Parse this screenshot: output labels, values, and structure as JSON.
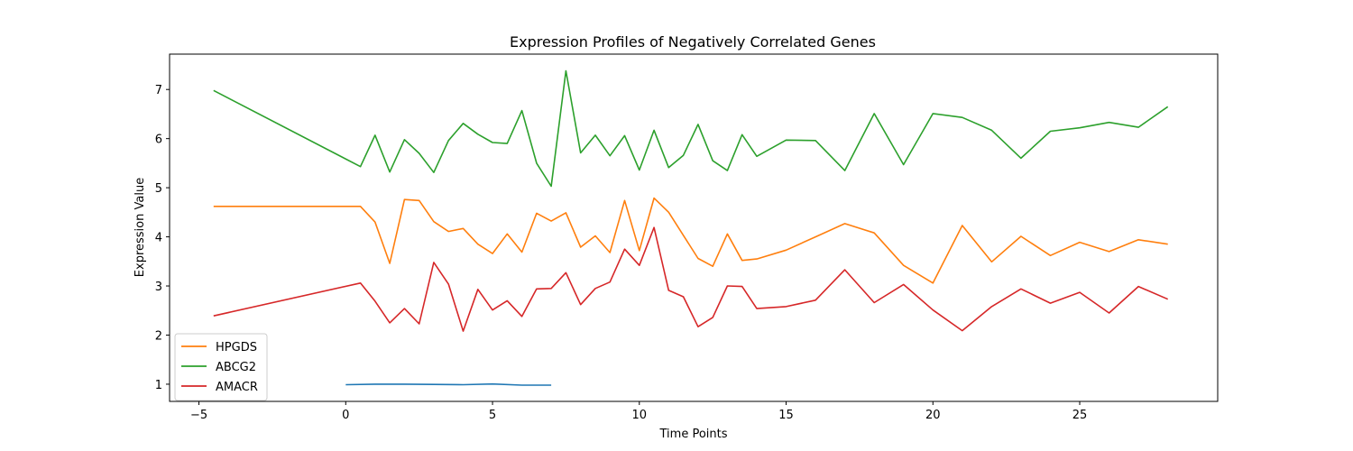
{
  "chart_data": {
    "type": "line",
    "title": "Expression Profiles of Negatively Correlated Genes",
    "xlabel": "Time Points",
    "ylabel": "Expression Value",
    "xlim": [
      -6,
      29.7
    ],
    "ylim": [
      0.65,
      7.72
    ],
    "xticks": [
      -5,
      0,
      5,
      10,
      15,
      20,
      25
    ],
    "yticks": [
      1,
      2,
      3,
      4,
      5,
      6,
      7
    ],
    "grid": false,
    "legend": "lower-left",
    "series": [
      {
        "name": "",
        "color": "#1f77b4",
        "in_legend": false,
        "x": [
          0,
          1,
          2,
          3,
          4,
          5,
          6,
          7
        ],
        "y": [
          0.99,
          1.0,
          1.0,
          0.995,
          0.99,
          1.005,
          0.98,
          0.98
        ]
      },
      {
        "name": "HPGDS",
        "color": "#ff7f0e",
        "in_legend": true,
        "x": [
          -4.5,
          0.5,
          1,
          1.5,
          2,
          2.5,
          3,
          3.5,
          4,
          4.5,
          5,
          5.5,
          6,
          6.5,
          7,
          7.5,
          8,
          8.5,
          9,
          9.5,
          10,
          10.5,
          11,
          11.5,
          12,
          12.5,
          13,
          13.5,
          14,
          15,
          16,
          17,
          18,
          19,
          20,
          21,
          22,
          23,
          24,
          25,
          26,
          27,
          28
        ],
        "y": [
          4.62,
          4.62,
          4.3,
          3.46,
          4.76,
          4.74,
          4.31,
          4.11,
          4.17,
          3.85,
          3.66,
          4.06,
          3.69,
          4.48,
          4.32,
          4.49,
          3.79,
          4.02,
          3.68,
          4.74,
          3.72,
          4.79,
          4.5,
          4.03,
          3.56,
          3.4,
          4.06,
          3.52,
          3.55,
          3.73,
          4.0,
          4.27,
          4.08,
          3.42,
          3.06,
          4.23,
          3.49,
          4.01,
          3.62,
          3.89,
          3.7,
          3.94,
          3.85
        ]
      },
      {
        "name": "ABCG2",
        "color": "#2ca02c",
        "in_legend": true,
        "x": [
          -4.5,
          0.5,
          1,
          1.5,
          2,
          2.5,
          3,
          3.5,
          4,
          4.5,
          5,
          5.5,
          6,
          6.5,
          7,
          7.5,
          8,
          8.5,
          9,
          9.5,
          10,
          10.5,
          11,
          11.5,
          12,
          12.5,
          13,
          13.5,
          14,
          15,
          16,
          17,
          18,
          19,
          20,
          21,
          22,
          23,
          24,
          25,
          26,
          27,
          28
        ],
        "y": [
          6.98,
          5.43,
          6.07,
          5.32,
          5.98,
          5.7,
          5.31,
          5.96,
          6.31,
          6.09,
          5.92,
          5.9,
          6.57,
          5.5,
          5.03,
          7.38,
          5.71,
          6.07,
          5.65,
          6.06,
          5.36,
          6.17,
          5.41,
          5.66,
          6.29,
          5.55,
          5.35,
          6.08,
          5.64,
          5.97,
          5.96,
          5.35,
          6.51,
          5.47,
          6.51,
          6.43,
          6.17,
          5.6,
          6.15,
          6.22,
          6.33,
          6.23,
          6.65
        ]
      },
      {
        "name": "AMACR",
        "color": "#d62728",
        "in_legend": true,
        "x": [
          -4.5,
          0.5,
          1,
          1.5,
          2,
          2.5,
          3,
          3.5,
          4,
          4.5,
          5,
          5.5,
          6,
          6.5,
          7,
          7.5,
          8,
          8.5,
          9,
          9.5,
          10,
          10.5,
          11,
          11.5,
          12,
          12.5,
          13,
          13.5,
          14,
          15,
          16,
          17,
          18,
          19,
          20,
          21,
          22,
          23,
          24,
          25,
          26,
          27,
          28
        ],
        "y": [
          2.39,
          3.06,
          2.69,
          2.25,
          2.54,
          2.23,
          3.48,
          3.04,
          2.08,
          2.93,
          2.51,
          2.7,
          2.38,
          2.94,
          2.95,
          3.27,
          2.62,
          2.95,
          3.08,
          3.75,
          3.42,
          4.19,
          2.91,
          2.78,
          2.17,
          2.36,
          3.0,
          2.99,
          2.54,
          2.58,
          2.71,
          3.33,
          2.66,
          3.03,
          2.51,
          2.09,
          2.58,
          2.94,
          2.65,
          2.87,
          2.45,
          2.99,
          2.73
        ]
      }
    ]
  }
}
